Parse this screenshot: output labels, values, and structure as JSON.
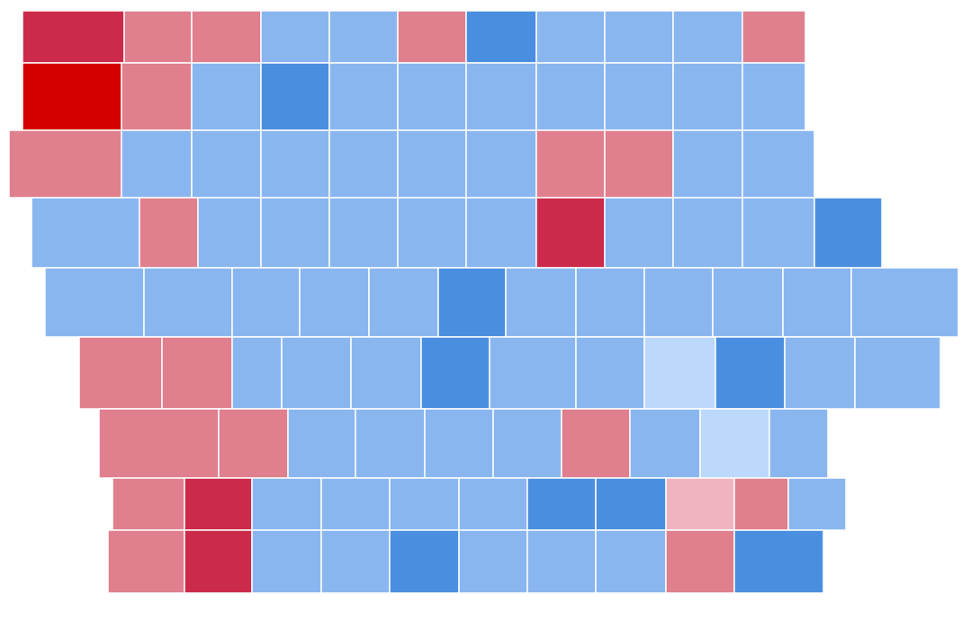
{
  "map": {
    "counties": [
      [
        "#cc2a4a",
        "#e07f8e",
        "#e07f8e",
        "#8ab6f0",
        "#8ab6f0",
        "#e07f8e",
        "#4a8ee0",
        "#8ab6f0",
        "#8ab6f0",
        "#8ab6f0",
        "#e07f8e"
      ],
      [
        "#d40000",
        "#e07f8e",
        "#8ab6f0",
        "#4a8ee0",
        "#8ab6f0",
        "#8ab6f0",
        "#8ab6f0",
        "#8ab6f0",
        "#8ab6f0",
        "#8ab6f0",
        "#8ab6f0"
      ],
      [
        "#e07f8e",
        "#8ab6f0",
        "#8ab6f0",
        "#8ab6f0",
        "#8ab6f0",
        "#8ab6f0",
        "#8ab6f0",
        "#e07f8e",
        "#e07f8e",
        "#8ab6f0",
        "#8ab6f0"
      ],
      [
        "#8ab6f0",
        "#e07f8e",
        "#8ab6f0",
        "#8ab6f0",
        "#8ab6f0",
        "#8ab6f0",
        "#8ab6f0",
        "#cc2a4a",
        "#8ab6f0",
        "#8ab6f0",
        "#8ab6f0",
        "#4a8ee0"
      ],
      [
        "#8ab6f0",
        "#8ab6f0",
        "#8ab6f0",
        "#8ab6f0",
        "#8ab6f0",
        "#4a8ee0",
        "#8ab6f0",
        "#8ab6f0",
        "#8ab6f0",
        "#8ab6f0",
        "#8ab6f0",
        "#8ab6f0"
      ],
      [
        "#e07f8e",
        "#e07f8e",
        "#8ab6f0",
        "#8ab6f0",
        "#8ab6f0",
        "#4a8ee0",
        "#8ab6f0",
        "#8ab6f0",
        "#bcd8fb",
        "#4a8ee0",
        "#8ab6f0",
        "#8ab6f0"
      ],
      [
        "#e07f8e",
        "#e07f8e",
        "#8ab6f0",
        "#8ab6f0",
        "#8ab6f0",
        "#8ab6f0",
        "#e07f8e",
        "#8ab6f0",
        "#bcd8fb",
        "#8ab6f0"
      ],
      [
        "#e07f8e",
        "#cc2a4a",
        "#8ab6f0",
        "#8ab6f0",
        "#8ab6f0",
        "#8ab6f0",
        "#4a8ee0",
        "#4a8ee0",
        "#f0b4c0",
        "#e07f8e",
        "#8ab6f0"
      ],
      [
        "#e07f8e",
        "#cc2a4a",
        "#8ab6f0",
        "#8ab6f0",
        "#4a8ee0",
        "#8ab6f0",
        "#8ab6f0",
        "#8ab6f0",
        "#e07f8e",
        "#4a8ee0"
      ]
    ]
  }
}
